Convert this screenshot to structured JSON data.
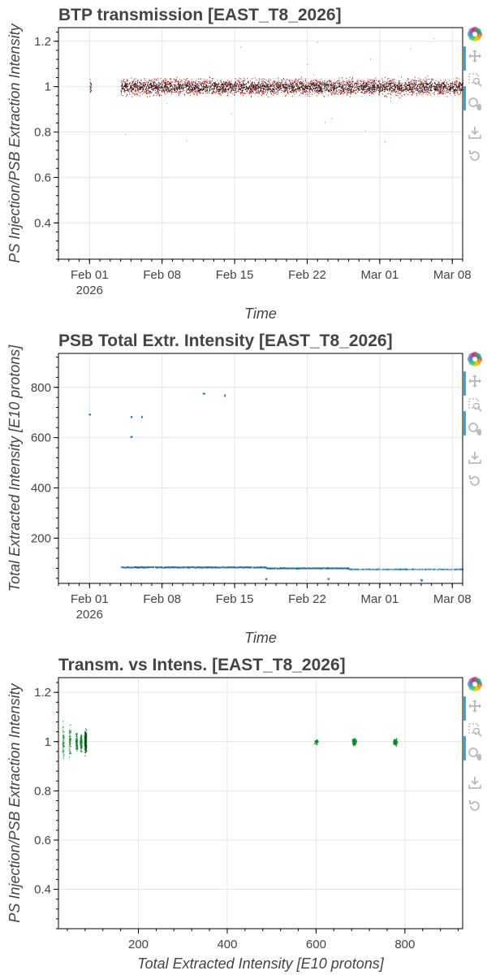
{
  "colors": {
    "transmission": "#b00000",
    "intensity": "#1f6fb0",
    "scatter": "#0a8a2a",
    "toolbar_active": "#26aae1",
    "tool_icon": "#bbbbbb"
  },
  "toolbar": {
    "tools": [
      "bokeh-logo-icon",
      "pan-icon",
      "box-zoom-icon",
      "wheel-zoom-icon",
      "save-icon",
      "reset-icon"
    ]
  },
  "panels": [
    {
      "title": "BTP transmission [EAST_T8_2026]",
      "xlabel": "Time",
      "ylabel": "PS Injection/PSB Extraction Intensity"
    },
    {
      "title": "PSB Total Extr. Intensity [EAST_T8_2026]",
      "xlabel": "Time",
      "ylabel": "Total Extracted Intensity [E10 protons]"
    },
    {
      "title": "Transm. vs Intens. [EAST_T8_2026]",
      "xlabel": "Total Extracted Intensity [E10 protons]",
      "ylabel": "PS Injection/PSB Extraction Intensity"
    }
  ],
  "chart_data": [
    {
      "type": "scatter",
      "title": "BTP transmission [EAST_T8_2026]",
      "xlabel": "Time",
      "ylabel": "PS Injection/PSB Extraction Intensity",
      "x_ticks": [
        "Feb 01",
        "Feb 08",
        "Feb 15",
        "Feb 22",
        "Mar 01",
        "Mar 08"
      ],
      "x_tick_sub": "2026",
      "xlim": [
        "2026-01-29",
        "2026-03-09"
      ],
      "ylim": [
        0.24,
        1.26
      ],
      "y_ticks": [
        "0.4",
        "0.6",
        "0.8",
        "1",
        "1.2"
      ],
      "grid": true,
      "series": [
        {
          "color": "#b00000",
          "y_center": 1.0,
          "y_spread": 0.05,
          "runs": [
            [
              "2026-02-01",
              "2026-02-01"
            ],
            [
              "2026-02-04",
              "2026-02-06"
            ],
            [
              "2026-02-06",
              "2026-02-07"
            ],
            [
              "2026-02-07",
              "2026-02-08"
            ],
            [
              "2026-02-08",
              "2026-02-11"
            ],
            [
              "2026-02-11",
              "2026-02-14"
            ],
            [
              "2026-02-14",
              "2026-02-17"
            ],
            [
              "2026-02-17",
              "2026-02-19"
            ],
            [
              "2026-02-19",
              "2026-02-26"
            ],
            [
              "2026-02-26",
              "2026-03-05"
            ],
            [
              "2026-03-05",
              "2026-03-09"
            ]
          ]
        }
      ]
    },
    {
      "type": "scatter",
      "title": "PSB Total Extr. Intensity [EAST_T8_2026]",
      "xlabel": "Time",
      "ylabel": "Total Extracted Intensity [E10 protons]",
      "x_ticks": [
        "Feb 01",
        "Feb 08",
        "Feb 15",
        "Feb 22",
        "Mar 01",
        "Mar 08"
      ],
      "x_tick_sub": "2026",
      "xlim": [
        "2026-01-29",
        "2026-03-09"
      ],
      "ylim": [
        20,
        935
      ],
      "y_ticks": [
        "200",
        "400",
        "600",
        "800"
      ],
      "grid": true,
      "series": [
        {
          "color": "#1f6fb0",
          "points": [
            [
              "2026-02-01",
              695
            ],
            [
              "2026-02-05",
              685
            ],
            [
              "2026-02-05",
              605
            ],
            [
              "2026-02-06",
              686
            ],
            [
              "2026-02-12",
              778
            ],
            [
              "2026-02-14",
              770
            ],
            [
              "2026-02-18",
              40
            ],
            [
              "2026-02-24",
              40
            ],
            [
              "2026-03-05",
              35
            ]
          ],
          "runs": [
            [
              "2026-02-04",
              "2026-02-08",
              86
            ],
            [
              "2026-02-08",
              "2026-02-18",
              86
            ],
            [
              "2026-02-18",
              "2026-02-26",
              82
            ],
            [
              "2026-02-26",
              "2026-03-09",
              78
            ]
          ]
        }
      ]
    },
    {
      "type": "scatter",
      "title": "Transm. vs Intens. [EAST_T8_2026]",
      "xlabel": "Total Extracted Intensity [E10 protons]",
      "ylabel": "PS Injection/PSB Extraction Intensity",
      "xlim": [
        20,
        930
      ],
      "x_ticks": [
        200,
        400,
        600,
        800
      ],
      "ylim": [
        0.24,
        1.26
      ],
      "y_ticks": [
        "0.4",
        "0.6",
        "0.8",
        "1",
        "1.2"
      ],
      "grid": true,
      "series": [
        {
          "color": "#0a8a2a",
          "clusters": [
            {
              "x": 30,
              "y": 1.0,
              "spread": 0.1,
              "density": 0.2
            },
            {
              "x": 45,
              "y": 1.0,
              "spread": 0.08,
              "density": 0.25
            },
            {
              "x": 60,
              "y": 1.0,
              "spread": 0.06,
              "density": 0.35
            },
            {
              "x": 70,
              "y": 1.0,
              "spread": 0.05,
              "density": 0.5
            },
            {
              "x": 80,
              "y": 1.0,
              "spread": 0.06,
              "density": 1.0
            },
            {
              "x": 600,
              "y": 1.0,
              "spread": 0.015,
              "density": 0.15
            },
            {
              "x": 685,
              "y": 1.0,
              "spread": 0.02,
              "density": 0.5
            },
            {
              "x": 778,
              "y": 1.0,
              "spread": 0.02,
              "density": 0.5
            }
          ]
        }
      ]
    }
  ]
}
